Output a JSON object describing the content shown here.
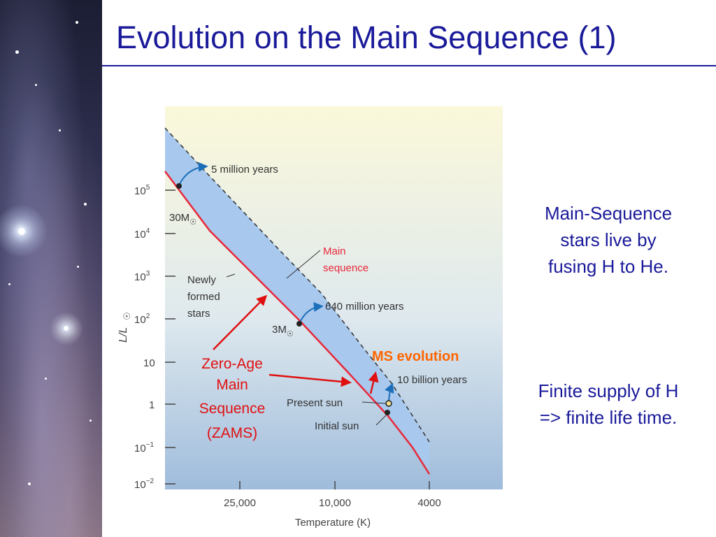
{
  "slide": {
    "title": "Evolution on the Main Sequence (1)",
    "bullet_1": [
      "Main-Sequence",
      "stars live by",
      "fusing H to He."
    ],
    "bullet_2": [
      "Finite supply of H",
      "=> finite life time."
    ]
  },
  "diagram": {
    "y_axis_label": "L/L",
    "x_axis_label": "Temperature (K)",
    "y_ticks": [
      {
        "base": "10",
        "exp": "5"
      },
      {
        "base": "10",
        "exp": "4"
      },
      {
        "base": "10",
        "exp": "3"
      },
      {
        "base": "10",
        "exp": "2"
      },
      {
        "base": "10",
        "exp": ""
      },
      {
        "base": "1",
        "exp": ""
      },
      {
        "base": "10",
        "exp": "−1"
      },
      {
        "base": "10",
        "exp": "−2"
      }
    ],
    "x_ticks": [
      "25,000",
      "10,000",
      "4000"
    ],
    "labels": {
      "five_million": "5 million years",
      "six_forty_million": "640 million years",
      "ten_billion": "10 billion years",
      "main_sequence": [
        "Main",
        "sequence"
      ],
      "newly_formed": [
        "Newly",
        "formed",
        "stars"
      ],
      "mass_30": "30M",
      "mass_3": "3M",
      "present_sun": "Present sun",
      "initial_sun": "Initial sun",
      "zams": [
        "Zero-Age",
        "Main",
        "Sequence",
        "(ZAMS)"
      ],
      "ms_evolution": "MS evolution"
    },
    "colors": {
      "zams_line": "#e8283a",
      "band": "#a8c8ee",
      "arrow": "#1c6fb8",
      "annotation_red": "#e01010",
      "annotation_orange": "#ff6600",
      "present_sun_marker": "#f5e08c"
    }
  }
}
